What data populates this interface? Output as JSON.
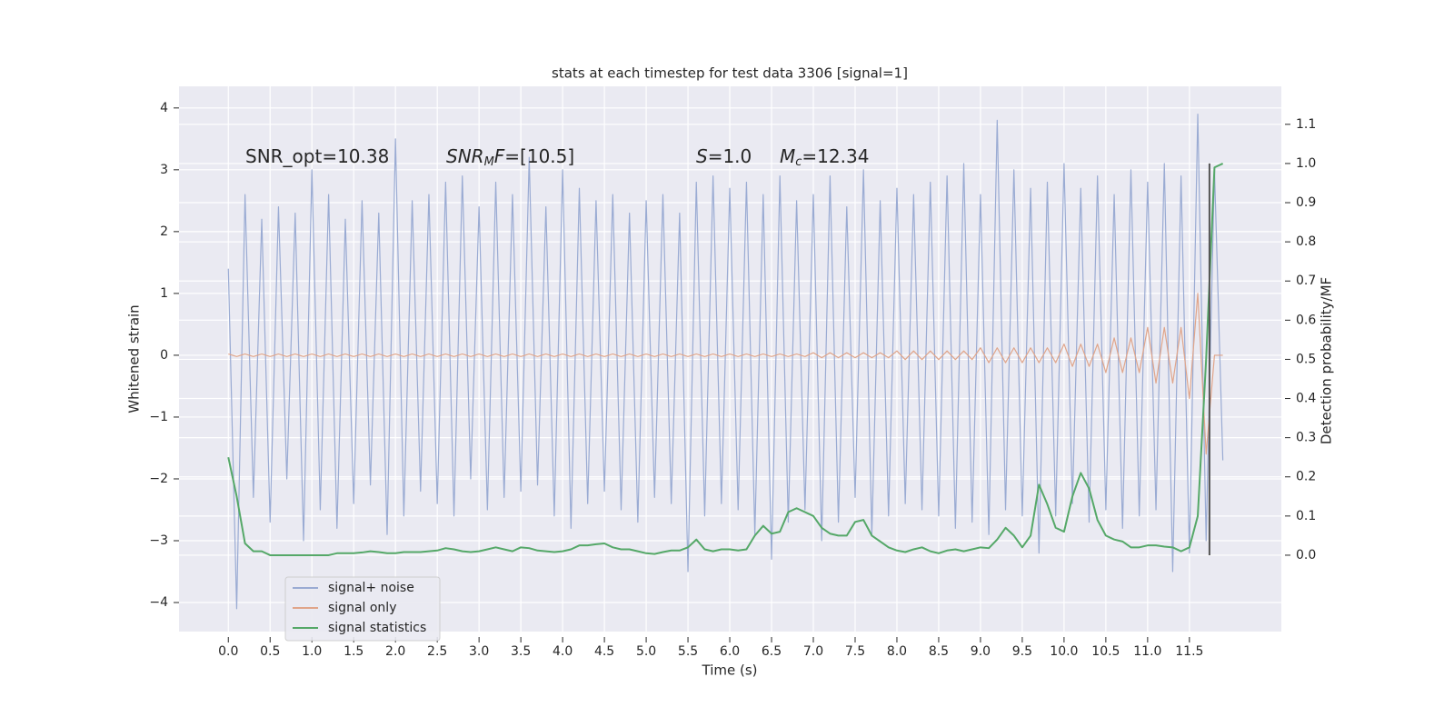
{
  "chart_data": {
    "type": "line",
    "title": "stats at each timestep for test data 3306 [signal=1]",
    "x_label": "Time (s)",
    "y_label": "Whitened strain",
    "y2_label": "Detection probability/MF",
    "annotations": [
      {
        "parts": [
          {
            "text": "SNR_opt=10.38",
            "style": "normal"
          }
        ]
      },
      {
        "parts": [
          {
            "text": "SNR",
            "style": "italic"
          },
          {
            "text": "M",
            "style": "sub"
          },
          {
            "text": "F",
            "style": "italic"
          },
          {
            "text": "=[10.5]",
            "style": "normal"
          }
        ]
      },
      {
        "parts": [
          {
            "text": "S",
            "style": "italic"
          },
          {
            "text": "=1.0",
            "style": "normal"
          }
        ]
      },
      {
        "parts": [
          {
            "text": "M",
            "style": "italic"
          },
          {
            "text": "c",
            "style": "sub"
          },
          {
            "text": "=12.34",
            "style": "normal"
          }
        ]
      }
    ],
    "x": [
      0.0,
      0.1,
      0.2,
      0.3,
      0.4,
      0.5,
      0.6,
      0.7,
      0.8,
      0.9,
      1.0,
      1.1,
      1.2,
      1.3,
      1.4,
      1.5,
      1.6,
      1.7,
      1.8,
      1.9,
      2.0,
      2.1,
      2.2,
      2.3,
      2.4,
      2.5,
      2.6,
      2.7,
      2.8,
      2.9,
      3.0,
      3.1,
      3.2,
      3.3,
      3.4,
      3.5,
      3.6,
      3.7,
      3.8,
      3.9,
      4.0,
      4.1,
      4.2,
      4.3,
      4.4,
      4.5,
      4.6,
      4.7,
      4.8,
      4.9,
      5.0,
      5.1,
      5.2,
      5.3,
      5.4,
      5.5,
      5.6,
      5.7,
      5.8,
      5.9,
      6.0,
      6.1,
      6.2,
      6.3,
      6.4,
      6.5,
      6.6,
      6.7,
      6.8,
      6.9,
      7.0,
      7.1,
      7.2,
      7.3,
      7.4,
      7.5,
      7.6,
      7.7,
      7.8,
      7.9,
      8.0,
      8.1,
      8.2,
      8.3,
      8.4,
      8.5,
      8.6,
      8.7,
      8.8,
      8.9,
      9.0,
      9.1,
      9.2,
      9.3,
      9.4,
      9.5,
      9.6,
      9.7,
      9.8,
      9.9,
      10.0,
      10.1,
      10.2,
      10.3,
      10.4,
      10.5,
      10.6,
      10.7,
      10.8,
      10.9,
      11.0,
      11.1,
      11.2,
      11.3,
      11.4,
      11.5,
      11.6,
      11.7,
      11.8,
      11.9
    ],
    "series": [
      {
        "name": "signal+ noise",
        "color": "#9aabd3",
        "axis": "y",
        "values": [
          1.4,
          -4.1,
          2.6,
          -2.3,
          2.2,
          -2.7,
          2.4,
          -2.0,
          2.3,
          -3.0,
          3.0,
          -2.5,
          2.6,
          -2.8,
          2.2,
          -2.4,
          2.5,
          -2.1,
          2.3,
          -2.9,
          3.5,
          -2.6,
          2.5,
          -2.2,
          2.6,
          -2.4,
          2.8,
          -2.6,
          2.9,
          -2.0,
          2.4,
          -2.5,
          2.8,
          -2.3,
          2.6,
          -2.2,
          3.2,
          -2.1,
          2.4,
          -2.6,
          3.0,
          -2.8,
          2.7,
          -2.4,
          2.5,
          -2.2,
          2.6,
          -2.5,
          2.3,
          -2.7,
          2.5,
          -2.3,
          2.6,
          -2.4,
          2.3,
          -3.5,
          2.8,
          -2.6,
          2.9,
          -2.4,
          2.7,
          -2.5,
          2.8,
          -2.9,
          2.6,
          -3.3,
          2.9,
          -2.7,
          2.5,
          -2.5,
          2.6,
          -3.0,
          2.9,
          -2.7,
          2.4,
          -2.3,
          3.0,
          -2.9,
          2.5,
          -2.6,
          2.7,
          -2.4,
          2.6,
          -2.5,
          2.8,
          -2.6,
          2.9,
          -2.8,
          3.1,
          -2.7,
          2.6,
          -2.9,
          3.8,
          -2.5,
          3.0,
          -2.6,
          2.7,
          -3.2,
          2.8,
          -2.6,
          3.1,
          -2.4,
          2.7,
          -2.7,
          2.9,
          -2.5,
          2.6,
          -2.8,
          3.0,
          -2.6,
          2.8,
          -2.5,
          3.1,
          -3.5,
          2.9,
          -3.2,
          3.9,
          -3.0,
          3.0,
          -1.7
        ]
      },
      {
        "name": "signal only",
        "color": "#e0a58a",
        "axis": "y",
        "values": [
          0.02,
          -0.02,
          0.02,
          -0.02,
          0.02,
          -0.02,
          0.02,
          -0.02,
          0.02,
          -0.02,
          0.02,
          -0.02,
          0.02,
          -0.02,
          0.02,
          -0.02,
          0.02,
          -0.02,
          0.02,
          -0.02,
          0.02,
          -0.02,
          0.02,
          -0.02,
          0.02,
          -0.02,
          0.02,
          -0.02,
          0.02,
          -0.02,
          0.02,
          -0.02,
          0.02,
          -0.02,
          0.02,
          -0.02,
          0.02,
          -0.02,
          0.02,
          -0.02,
          0.02,
          -0.02,
          0.02,
          -0.02,
          0.02,
          -0.02,
          0.02,
          -0.02,
          0.02,
          -0.02,
          0.02,
          -0.02,
          0.02,
          -0.02,
          0.02,
          -0.02,
          0.02,
          -0.02,
          0.02,
          -0.02,
          0.02,
          -0.02,
          0.02,
          -0.02,
          0.02,
          -0.02,
          0.02,
          -0.02,
          0.02,
          -0.02,
          0.04,
          -0.04,
          0.04,
          -0.04,
          0.04,
          -0.04,
          0.04,
          -0.04,
          0.04,
          -0.04,
          0.07,
          -0.07,
          0.07,
          -0.07,
          0.07,
          -0.07,
          0.07,
          -0.07,
          0.07,
          -0.07,
          0.12,
          -0.12,
          0.12,
          -0.12,
          0.12,
          -0.12,
          0.12,
          -0.12,
          0.12,
          -0.12,
          0.18,
          -0.18,
          0.18,
          -0.18,
          0.18,
          -0.28,
          0.28,
          -0.28,
          0.28,
          -0.28,
          0.45,
          -0.45,
          0.45,
          -0.45,
          0.45,
          -0.7,
          1.0,
          -1.6,
          0.0,
          0.0
        ]
      },
      {
        "name": "signal statistics",
        "color": "#55a868",
        "axis": "y2",
        "values": [
          0.25,
          0.15,
          0.03,
          0.01,
          0.01,
          0.0,
          0.0,
          0.0,
          0.0,
          0.0,
          0.0,
          0.0,
          0.0,
          0.005,
          0.005,
          0.005,
          0.007,
          0.01,
          0.008,
          0.005,
          0.005,
          0.008,
          0.008,
          0.008,
          0.01,
          0.012,
          0.018,
          0.015,
          0.01,
          0.008,
          0.01,
          0.015,
          0.02,
          0.015,
          0.01,
          0.02,
          0.018,
          0.012,
          0.01,
          0.008,
          0.01,
          0.015,
          0.025,
          0.025,
          0.028,
          0.03,
          0.02,
          0.015,
          0.015,
          0.01,
          0.005,
          0.003,
          0.008,
          0.012,
          0.012,
          0.02,
          0.04,
          0.015,
          0.01,
          0.015,
          0.015,
          0.012,
          0.015,
          0.05,
          0.075,
          0.055,
          0.06,
          0.11,
          0.12,
          0.11,
          0.1,
          0.07,
          0.055,
          0.05,
          0.05,
          0.085,
          0.09,
          0.05,
          0.035,
          0.02,
          0.012,
          0.008,
          0.015,
          0.02,
          0.01,
          0.005,
          0.012,
          0.015,
          0.01,
          0.015,
          0.02,
          0.018,
          0.04,
          0.07,
          0.05,
          0.02,
          0.05,
          0.18,
          0.13,
          0.07,
          0.06,
          0.15,
          0.21,
          0.17,
          0.09,
          0.05,
          0.04,
          0.035,
          0.02,
          0.02,
          0.025,
          0.025,
          0.022,
          0.02,
          0.01,
          0.02,
          0.1,
          0.5,
          0.99,
          1.0
        ]
      }
    ],
    "threshold_line": {
      "x": 11.74,
      "y2": [
        0,
        1
      ],
      "color": "#555555"
    },
    "xlim": [
      -0.59,
      12.6
    ],
    "ylim": [
      -4.47,
      4.35
    ],
    "y2lim": [
      -0.195,
      1.197
    ],
    "xticks": [
      {
        "value": 0,
        "label": "0.0"
      },
      0.5,
      {
        "value": 1,
        "label": "1.0"
      },
      1.5,
      {
        "value": 2,
        "label": "2.0"
      },
      2.5,
      {
        "value": 3,
        "label": "3.0"
      },
      3.5,
      {
        "value": 4,
        "label": "4.0"
      },
      4.5,
      {
        "value": 5,
        "label": "5.0"
      },
      5.5,
      {
        "value": 6,
        "label": "6.0"
      },
      6.5,
      {
        "value": 7,
        "label": "7.0"
      },
      7.5,
      {
        "value": 8,
        "label": "8.0"
      },
      8.5,
      {
        "value": 9,
        "label": "9.0"
      },
      9.5,
      {
        "value": 10,
        "label": "10.0"
      },
      10.5,
      {
        "value": 11,
        "label": "11.0"
      },
      11.5
    ],
    "yticks": [
      {
        "value": -4,
        "label": "−4"
      },
      {
        "value": -3,
        "label": "−3"
      },
      {
        "value": -2,
        "label": "−2"
      },
      {
        "value": -1,
        "label": "−1"
      },
      0,
      1,
      2,
      3,
      4
    ],
    "y2ticks": [
      {
        "value": 0,
        "label": "0.0"
      },
      0.1,
      0.2,
      0.3,
      0.4,
      0.5,
      0.6,
      0.7,
      0.8,
      0.9,
      {
        "value": 1,
        "label": "1.0"
      },
      1.1
    ],
    "grid": true,
    "legend": "lower left"
  }
}
